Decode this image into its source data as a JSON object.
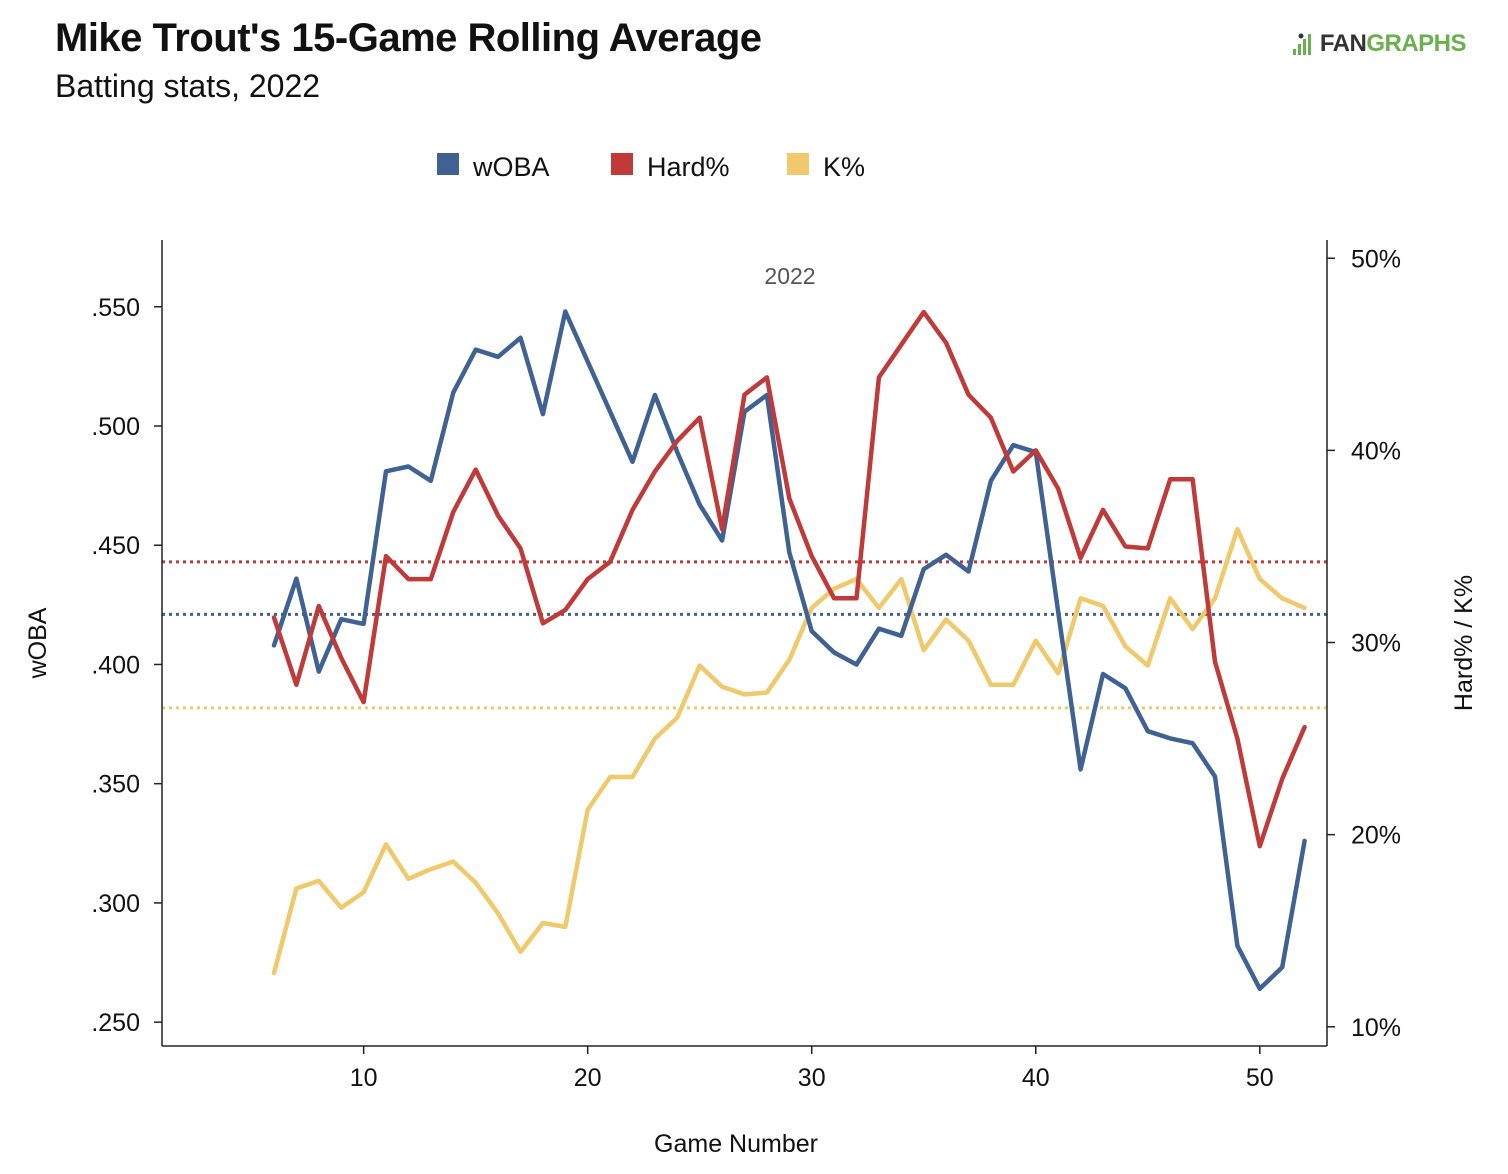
{
  "header": {
    "title": "Mike Trout's 15-Game Rolling Average",
    "subtitle": "Batting stats, 2022",
    "logo_text_a": "FAN",
    "logo_text_b": "GRAPHS"
  },
  "colors": {
    "woba": "#3f6293",
    "hard": "#c13a3a",
    "k": "#efc96c",
    "logo_green": "#6ab04c"
  },
  "chart_data": {
    "type": "line",
    "annotation": "2022",
    "xlabel": "Game Number",
    "ylabel_left": "wOBA",
    "ylabel_right": "Hard% / K%",
    "xlim": [
      1,
      53
    ],
    "ylim_left": [
      0.24,
      0.578
    ],
    "ylim_right": [
      0.09,
      0.5095
    ],
    "x_ticks": [
      10,
      20,
      30,
      40,
      50
    ],
    "x_tick_labels": [
      "10",
      "20",
      "30",
      "40",
      "50"
    ],
    "y_left_ticks": [
      0.25,
      0.3,
      0.35,
      0.4,
      0.45,
      0.5,
      0.55
    ],
    "y_left_tick_labels": [
      ".250",
      ".300",
      ".350",
      ".400",
      ".450",
      ".500",
      ".550"
    ],
    "y_right_ticks": [
      0.1,
      0.2,
      0.3,
      0.4,
      0.5
    ],
    "y_right_tick_labels": [
      "10%",
      "20%",
      "30%",
      "40%",
      "50%"
    ],
    "legend_position": "top-center",
    "x": [
      6,
      7,
      8,
      9,
      10,
      11,
      12,
      13,
      14,
      15,
      16,
      17,
      18,
      19,
      20,
      21,
      22,
      23,
      24,
      25,
      26,
      27,
      28,
      29,
      30,
      31,
      32,
      33,
      34,
      35,
      36,
      37,
      38,
      39,
      40,
      41,
      42,
      43,
      44,
      45,
      46,
      47,
      48,
      49,
      50,
      51,
      52
    ],
    "series": [
      {
        "name": "wOBA",
        "axis": "left",
        "color": "#3f6293",
        "average": 0.421,
        "values": [
          0.408,
          0.436,
          0.397,
          0.419,
          0.417,
          0.481,
          0.483,
          0.477,
          0.514,
          0.532,
          0.529,
          0.537,
          0.505,
          0.548,
          0.527,
          0.506,
          0.485,
          0.513,
          0.489,
          0.467,
          0.452,
          0.506,
          0.513,
          0.447,
          0.414,
          0.405,
          0.4,
          0.415,
          0.412,
          0.44,
          0.446,
          0.439,
          0.477,
          0.492,
          0.489,
          0.422,
          0.356,
          0.396,
          0.39,
          0.372,
          0.369,
          0.367,
          0.353,
          0.282,
          0.264,
          0.273,
          0.326
        ]
      },
      {
        "name": "Hard%",
        "axis": "right",
        "color": "#c13a3a",
        "average": 0.342,
        "values": [
          0.313,
          0.278,
          0.319,
          0.292,
          0.269,
          0.345,
          0.333,
          0.333,
          0.368,
          0.39,
          0.366,
          0.349,
          0.31,
          0.317,
          0.333,
          0.342,
          0.369,
          0.389,
          0.405,
          0.417,
          0.359,
          0.429,
          0.438,
          0.375,
          0.345,
          0.323,
          0.323,
          0.438,
          0.455,
          0.472,
          0.456,
          0.429,
          0.417,
          0.389,
          0.4,
          0.38,
          0.344,
          0.369,
          0.35,
          0.349,
          0.385,
          0.385,
          0.29,
          0.25,
          0.194,
          0.229,
          0.256
        ]
      },
      {
        "name": "K%",
        "axis": "right",
        "color": "#efc96c",
        "average": 0.266,
        "values": [
          0.128,
          0.172,
          0.176,
          0.162,
          0.17,
          0.195,
          0.177,
          0.182,
          0.186,
          0.175,
          0.159,
          0.139,
          0.154,
          0.152,
          0.213,
          0.23,
          0.23,
          0.25,
          0.261,
          0.288,
          0.277,
          0.273,
          0.274,
          0.291,
          0.318,
          0.328,
          0.333,
          0.318,
          0.333,
          0.296,
          0.312,
          0.301,
          0.278,
          0.278,
          0.301,
          0.284,
          0.323,
          0.319,
          0.298,
          0.288,
          0.323,
          0.307,
          0.323,
          0.359,
          0.333,
          0.323,
          0.318
        ]
      }
    ]
  }
}
